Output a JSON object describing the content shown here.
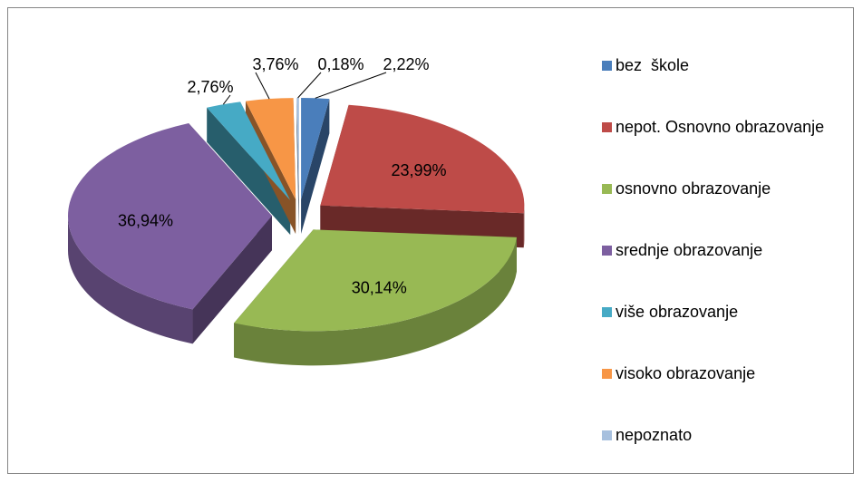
{
  "chart_data": {
    "type": "pie",
    "categories": [
      "bez  škole",
      "nepot. Osnovno obrazovanje",
      "osnovno obrazovanje",
      "srednje obrazovanje",
      "više obrazovanje",
      "visoko obrazovanje",
      "nepoznato"
    ],
    "values": [
      2.22,
      23.99,
      30.14,
      36.94,
      2.76,
      3.76,
      0.18
    ],
    "value_labels": [
      "2,22%",
      "23,99%",
      "30,14%",
      "36,94%",
      "2,76%",
      "3,76%",
      "0,18%"
    ],
    "colors": [
      "#4a7ebb",
      "#be4b48",
      "#98b954",
      "#7d5fa0",
      "#46aac5",
      "#f79646",
      "#a7c0de"
    ],
    "legend": "right",
    "three_d": true,
    "exploded": true
  }
}
